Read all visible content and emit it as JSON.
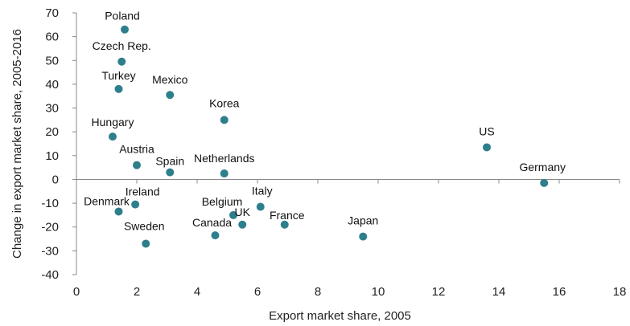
{
  "chart_data": {
    "type": "scatter",
    "title": "",
    "xlabel": "Export market share, 2005",
    "ylabel": "Change in export market share, 2005-2016",
    "xlim": [
      0,
      18
    ],
    "ylim": [
      -40,
      70
    ],
    "xticks": [
      0,
      2,
      4,
      6,
      8,
      10,
      12,
      14,
      16,
      18
    ],
    "yticks": [
      70,
      60,
      50,
      40,
      30,
      20,
      10,
      0,
      -10,
      -20,
      -30,
      -40
    ],
    "grid": false,
    "legend": "none",
    "marker_color": "#2e7f8c",
    "points": [
      {
        "label": "Poland",
        "x": 1.6,
        "y": 63
      },
      {
        "label": "Czech Rep.",
        "x": 1.5,
        "y": 49.5
      },
      {
        "label": "Turkey",
        "x": 1.4,
        "y": 38
      },
      {
        "label": "Mexico",
        "x": 3.1,
        "y": 35.5
      },
      {
        "label": "Korea",
        "x": 4.9,
        "y": 25
      },
      {
        "label": "Hungary",
        "x": 1.2,
        "y": 18
      },
      {
        "label": "US",
        "x": 13.6,
        "y": 13.5
      },
      {
        "label": "Austria",
        "x": 2.0,
        "y": 6
      },
      {
        "label": "Spain",
        "x": 3.1,
        "y": 3
      },
      {
        "label": "Netherlands",
        "x": 4.9,
        "y": 2.5
      },
      {
        "label": "Germany",
        "x": 15.5,
        "y": -1.5
      },
      {
        "label": "Ireland",
        "x": 1.95,
        "y": -10.5
      },
      {
        "label": "Denmark",
        "x": 1.4,
        "y": -13.5
      },
      {
        "label": "Italy",
        "x": 6.1,
        "y": -11.5
      },
      {
        "label": "Belgium",
        "x": 5.2,
        "y": -15
      },
      {
        "label": "UK",
        "x": 5.5,
        "y": -19
      },
      {
        "label": "France",
        "x": 6.9,
        "y": -19
      },
      {
        "label": "Canada",
        "x": 4.6,
        "y": -23.5
      },
      {
        "label": "Japan",
        "x": 9.5,
        "y": -24
      },
      {
        "label": "Sweden",
        "x": 2.3,
        "y": -27
      }
    ]
  }
}
